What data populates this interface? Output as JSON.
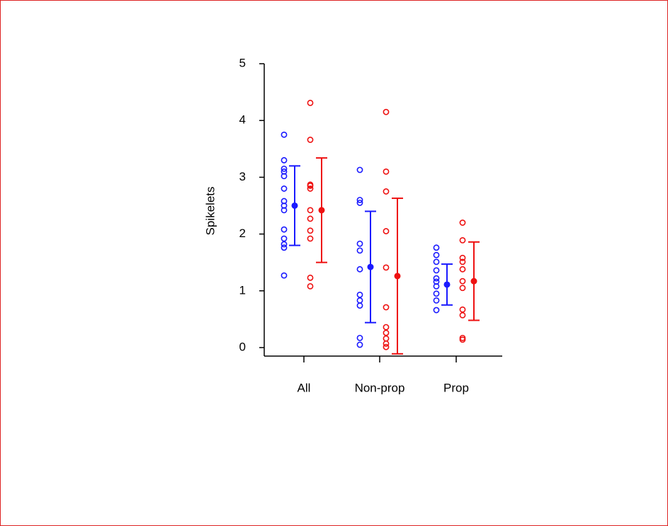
{
  "chart_data": {
    "type": "dotplot",
    "ylabel": "Spikelets",
    "categories": [
      "All",
      "Non-prop",
      "Prop"
    ],
    "ylim": [
      -0.15,
      5
    ],
    "yticks": [
      0,
      1,
      2,
      3,
      4,
      5
    ],
    "series": [
      {
        "color": "#1a1aff",
        "points": [
          [
            3.75,
            3.3,
            3.15,
            3.1,
            3.02,
            2.8,
            2.58,
            2.5,
            2.42,
            2.08,
            1.92,
            1.82,
            1.76,
            1.27
          ],
          [
            3.13,
            2.6,
            2.55,
            1.83,
            1.71,
            1.38,
            0.93,
            0.83,
            0.74,
            0.17,
            0.05
          ],
          [
            1.76,
            1.63,
            1.51,
            1.36,
            1.22,
            1.16,
            1.08,
            0.95,
            0.83,
            0.66
          ]
        ],
        "means": [
          2.5,
          1.42,
          1.11
        ],
        "errors": [
          0.7,
          0.98,
          0.36
        ]
      },
      {
        "color": "#ee1111",
        "points": [
          [
            4.31,
            3.66,
            2.87,
            2.85,
            2.8,
            2.42,
            2.27,
            2.06,
            1.92,
            1.23,
            1.08
          ],
          [
            4.15,
            3.1,
            2.75,
            2.05,
            1.41,
            0.71,
            0.36,
            0.26,
            0.16,
            0.07,
            0.01
          ],
          [
            2.2,
            1.89,
            1.58,
            1.51,
            1.38,
            1.17,
            1.05,
            0.67,
            0.57,
            0.17,
            0.14
          ]
        ],
        "means": [
          2.42,
          1.26,
          1.17
        ],
        "errors": [
          0.92,
          1.37,
          0.69
        ]
      }
    ]
  }
}
